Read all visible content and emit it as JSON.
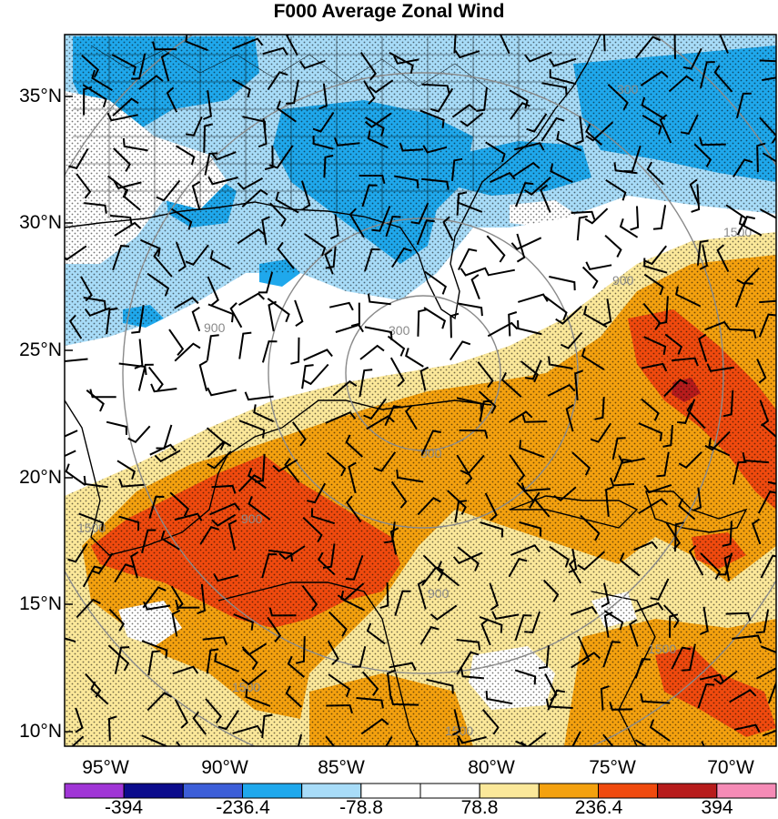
{
  "title": "F000 Average Zonal Wind",
  "axes": {
    "lat_labels": [
      "35°N",
      "30°N",
      "25°N",
      "20°N",
      "15°N",
      "10°N"
    ],
    "lon_labels": [
      "95°W",
      "90°W",
      "85°W",
      "80°W",
      "75°W",
      "70°W"
    ]
  },
  "contours": {
    "range_ring_labels": [
      "300",
      "300",
      "900",
      "900",
      "900",
      "900",
      "900",
      "1500",
      "1500",
      "1500",
      "1500",
      "1500"
    ]
  },
  "colorbar": {
    "labels": [
      "-394",
      "-236.4",
      "-78.8",
      "78.8",
      "236.4",
      "394"
    ],
    "colors": [
      "#a035d6",
      "#0c0c8c",
      "#3c5ed8",
      "#1fa8ec",
      "#a8dcf8",
      "#ffffff",
      "#ffffff",
      "#fbe89a",
      "#f4a10f",
      "#f04a0e",
      "#b71c1c",
      "#f58bb6"
    ]
  },
  "map_colors": {
    "water": "#ffffff",
    "light_blue": "#a8dcf8",
    "blue": "#1fa8ec",
    "yellow": "#fbe89a",
    "orange": "#f4a10f",
    "red": "#f04a0e",
    "dark_red": "#b71c1c",
    "ring": "#8a8a8a"
  }
}
